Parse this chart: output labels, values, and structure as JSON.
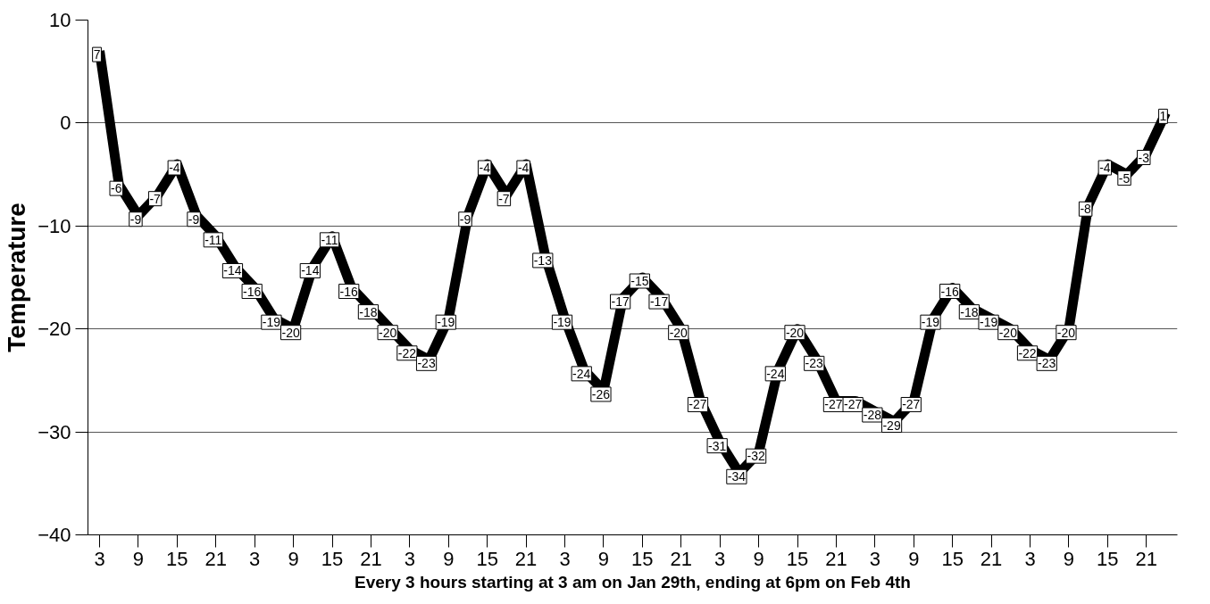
{
  "chart_data": {
    "type": "line",
    "xlabel": "Every 3 hours starting at 3 am on Jan 29th, ending at 6pm on Feb 4th",
    "ylabel": "Temperature",
    "categories": [
      "3",
      null,
      "9",
      null,
      "15",
      null,
      "21",
      null,
      "3",
      null,
      "9",
      null,
      "15",
      null,
      "21",
      null,
      "3",
      null,
      "9",
      null,
      "15",
      null,
      "21",
      null,
      "3",
      null,
      "9",
      null,
      "15",
      null,
      "21",
      null,
      "3",
      null,
      "9",
      null,
      "15",
      null,
      "21",
      null,
      "3",
      null,
      "9",
      null,
      "15",
      null,
      "21",
      null,
      "3",
      null,
      "9",
      null,
      "15",
      null,
      "21",
      null
    ],
    "series": [
      {
        "color": "#000000",
        "values": [
          7,
          -6,
          -9,
          -7,
          -4,
          -9,
          -11,
          -14,
          -16,
          -19,
          -20,
          -14,
          -11,
          -16,
          -18,
          -20,
          -22,
          -23,
          -19,
          -9,
          -4,
          -7,
          -4,
          -13,
          -19,
          -24,
          -26,
          -17,
          -15,
          -17,
          -20,
          -27,
          -31,
          -34,
          -32,
          -24,
          -20,
          -23,
          -27,
          -27,
          -28,
          -29,
          -27,
          -19,
          -16,
          -18,
          -19,
          -20,
          -22,
          -23,
          -20,
          -8,
          -4,
          -5,
          -3,
          1
        ]
      }
    ],
    "ylim": [
      -40,
      10
    ],
    "yticks": [
      -40,
      -30,
      -20,
      -10,
      0,
      10
    ],
    "grid": "y",
    "line_style": "solid",
    "data_labels": true
  }
}
